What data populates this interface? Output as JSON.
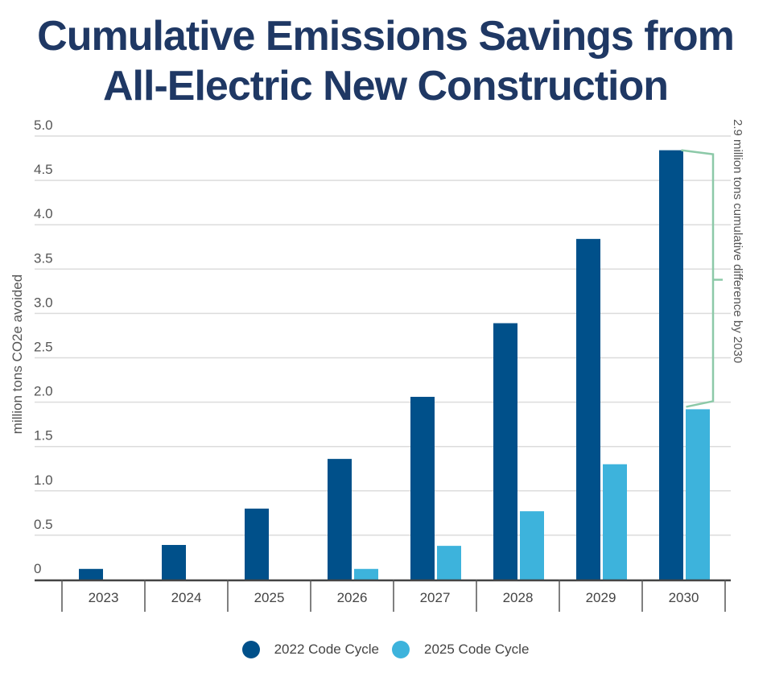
{
  "chart_data": {
    "type": "bar",
    "title": "Cumulative Emissions Savings from All-Electric New Construction",
    "title_lines": [
      "Cumulative Emissions Savings from",
      "All-Electric New Construction"
    ],
    "xlabel": "",
    "ylabel": "million tons CO2e avoided",
    "ylim": [
      0,
      5.0
    ],
    "yticks": [
      0,
      0.5,
      1.0,
      1.5,
      2.0,
      2.5,
      3.0,
      3.5,
      4.0,
      4.5,
      5.0
    ],
    "ytick_labels": [
      "0",
      "0.5",
      "1.0",
      "1.5",
      "2.0",
      "2.5",
      "3.0",
      "3.5",
      "4.0",
      "4.5",
      "5.0"
    ],
    "grid": true,
    "categories": [
      "2023",
      "2024",
      "2025",
      "2026",
      "2027",
      "2028",
      "2029",
      "2030"
    ],
    "series": [
      {
        "name": "2022 Code Cycle",
        "color": "#00508a",
        "values": [
          0.12,
          0.39,
          0.8,
          1.36,
          2.06,
          2.89,
          3.84,
          4.84
        ]
      },
      {
        "name": "2025 Code Cycle",
        "color": "#3db3dc",
        "values": [
          0,
          0,
          0,
          0.12,
          0.38,
          0.77,
          1.3,
          1.92
        ]
      }
    ],
    "legend_position": "bottom-center",
    "annotation": {
      "text": "2.9 million tons cumulative difference by 2030",
      "category": "2030",
      "from_value": 4.84,
      "to_value": 1.92,
      "color": "#8cc9a8"
    }
  }
}
